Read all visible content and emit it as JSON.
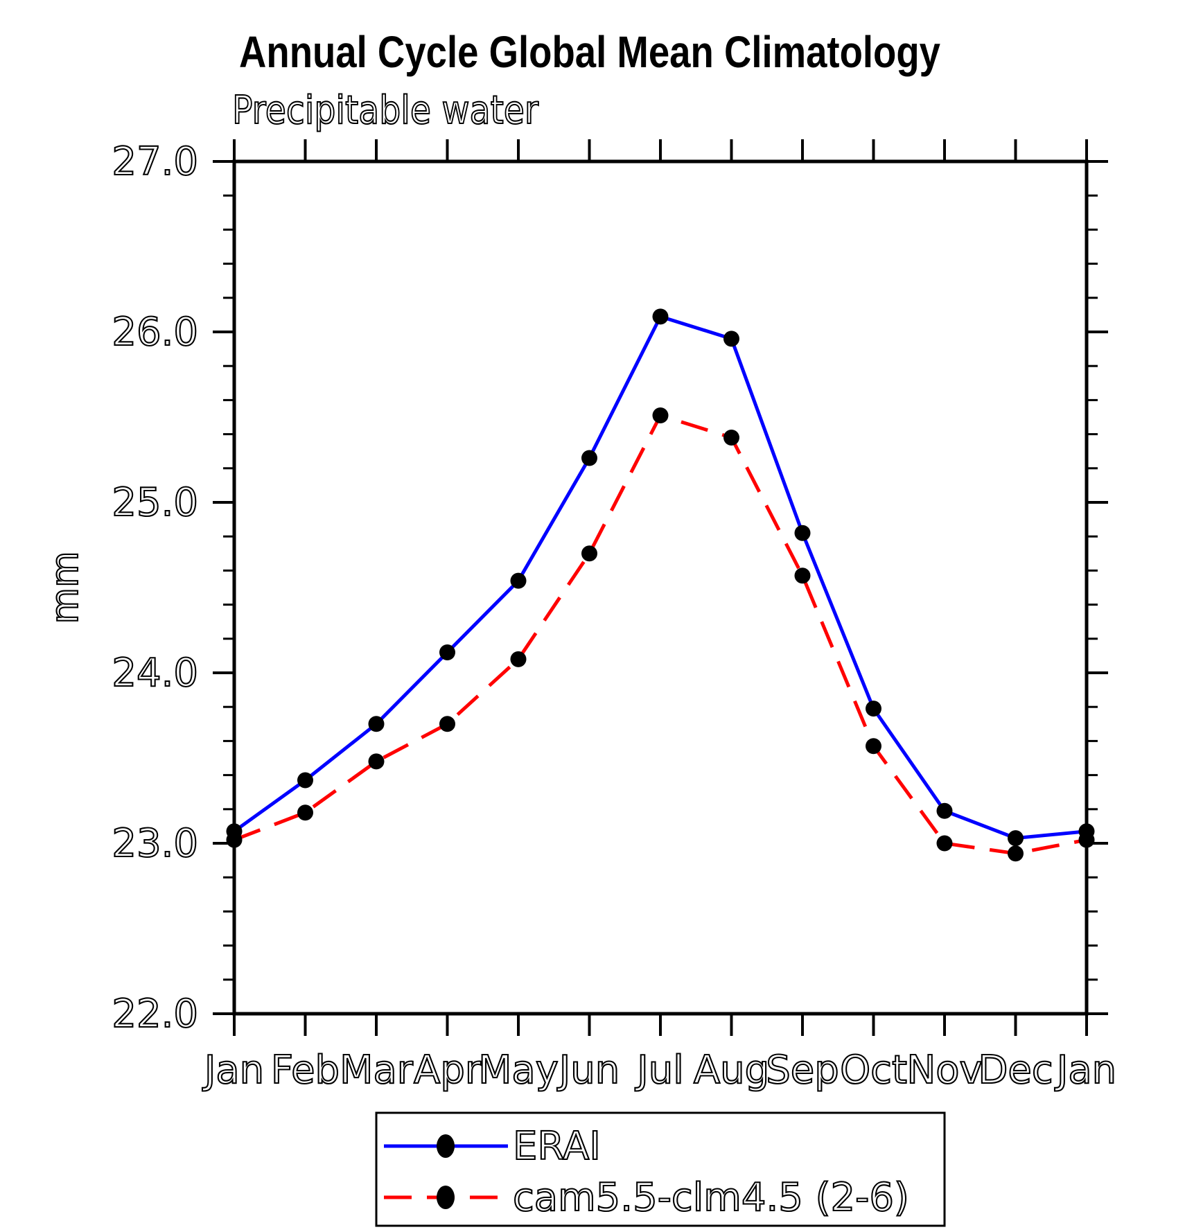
{
  "title": "Annual Cycle Global Mean Climatology",
  "subtitle": "Precipitable water",
  "y_axis": {
    "label": "mm"
  },
  "colors": {
    "erai": "#0000ff",
    "cam": "#ff0000",
    "marker": "#000000",
    "axis": "#000000"
  },
  "legend": {
    "entries": [
      {
        "label": "ERAI",
        "style": "solid",
        "color": "#0000ff"
      },
      {
        "label": "cam5.5-clm4.5 (2-6)",
        "style": "dashed",
        "color": "#ff0000"
      }
    ]
  },
  "chart_data": {
    "type": "line",
    "title": "Annual Cycle Global Mean Climatology",
    "subtitle": "Precipitable water",
    "ylabel": "mm",
    "xlabel": "",
    "x_labels": [
      "Jan",
      "Feb",
      "Mar",
      "Apr",
      "May",
      "Jun",
      "Jul",
      "Aug",
      "Sep",
      "Oct",
      "Nov",
      "Dec",
      "Jan"
    ],
    "y_tick_labels": [
      "22.0",
      "23.0",
      "24.0",
      "25.0",
      "26.0",
      "27.0"
    ],
    "ylim": [
      22.0,
      27.0
    ],
    "ytick_major": 1.0,
    "ytick_minor": 0.2,
    "grid": false,
    "legend_position": "bottom",
    "series": [
      {
        "name": "ERAI",
        "color": "#0000ff",
        "line_style": "solid",
        "marker": "filled-circle",
        "values": [
          23.07,
          23.37,
          23.7,
          24.12,
          24.54,
          25.26,
          26.09,
          25.96,
          24.82,
          23.79,
          23.19,
          23.03,
          23.07
        ]
      },
      {
        "name": "cam5.5-clm4.5 (2-6)",
        "color": "#ff0000",
        "line_style": "dashed",
        "marker": "filled-circle",
        "values": [
          23.02,
          23.18,
          23.48,
          23.7,
          24.08,
          24.7,
          25.51,
          25.38,
          24.57,
          23.57,
          23.0,
          22.94,
          23.02
        ]
      }
    ]
  }
}
